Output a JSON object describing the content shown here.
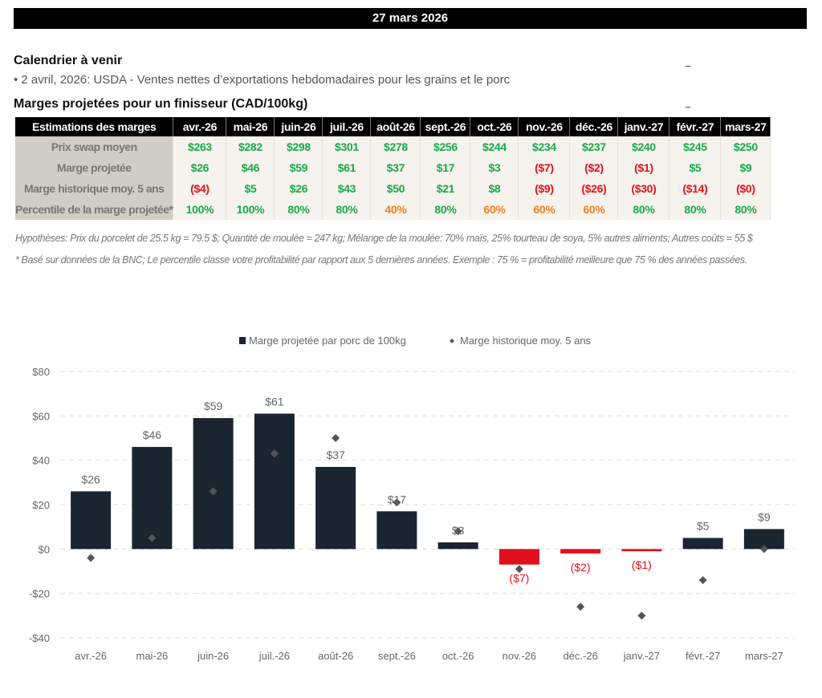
{
  "header": {
    "date": "27 mars 2026"
  },
  "calendar": {
    "title": "Calendrier à venir",
    "items": [
      "• 2 avril, 2026: USDA - Ventes nettes d’exportations hebdomadaires pour les grains et le porc"
    ]
  },
  "margins_section": {
    "title": "Marges projetées pour un finisseur (CAD/100kg)"
  },
  "table": {
    "header_label": "Estimations des marges",
    "months": [
      "avr.-26",
      "mai-26",
      "juin-26",
      "juil.-26",
      "août-26",
      "sept.-26",
      "oct.-26",
      "nov.-26",
      "déc.-26",
      "janv.-27",
      "févr.-27",
      "mars-27"
    ],
    "rows": [
      {
        "label": "Prix swap moyen",
        "values": [
          "$263",
          "$282",
          "$298",
          "$301",
          "$278",
          "$256",
          "$244",
          "$234",
          "$237",
          "$240",
          "$245",
          "$250"
        ],
        "status": [
          "pos",
          "pos",
          "pos",
          "pos",
          "pos",
          "pos",
          "pos",
          "pos",
          "pos",
          "pos",
          "pos",
          "pos"
        ]
      },
      {
        "label": "Marge projetée",
        "values": [
          "$26",
          "$46",
          "$59",
          "$61",
          "$37",
          "$17",
          "$3",
          "($7)",
          "($2)",
          "($1)",
          "$5",
          "$9"
        ],
        "status": [
          "pos",
          "pos",
          "pos",
          "pos",
          "pos",
          "pos",
          "pos",
          "neg",
          "neg",
          "neg",
          "pos",
          "pos"
        ]
      },
      {
        "label": "Marge historique moy. 5 ans",
        "values": [
          "($4)",
          "$5",
          "$26",
          "$43",
          "$50",
          "$21",
          "$8",
          "($9)",
          "($26)",
          "($30)",
          "($14)",
          "($0)"
        ],
        "status": [
          "neg",
          "pos",
          "pos",
          "pos",
          "pos",
          "pos",
          "pos",
          "neg",
          "neg",
          "neg",
          "neg",
          "neg"
        ]
      },
      {
        "label": "Percentile de la marge projetée*",
        "values": [
          "100%",
          "100%",
          "80%",
          "80%",
          "40%",
          "80%",
          "60%",
          "60%",
          "60%",
          "80%",
          "80%",
          "80%"
        ],
        "status": [
          "pos",
          "pos",
          "pos",
          "pos",
          "mid",
          "pos",
          "mid",
          "mid",
          "mid",
          "pos",
          "pos",
          "pos"
        ]
      }
    ]
  },
  "notes": {
    "hypotheses": "Hypothèses: Prix du porcelet de 25.5 kg = 79.5 $; Quantité de moulée = 247 kg; Mélange de la moulée: 70% maïs, 25% tourteau de soya, 5% autres aliments; Autres coûts = 55 $",
    "footnote": "* Basé sur données de la BNC; Le percentile classe votre profitabilité par rapport aux 5 dernières années. Exemple : 75 % = profitabilité meilleure que 75 % des années passées."
  },
  "colors": {
    "positive": "#1aa84a",
    "negative": "#e8101a",
    "neutral": "#f07e1c",
    "bar": "#1a2530",
    "bar_negative": "#e0101c",
    "marker": "#555555"
  },
  "chart_data": {
    "type": "bar",
    "title": "",
    "xlabel": "",
    "ylabel": "",
    "categories": [
      "avr.-26",
      "mai-26",
      "juin-26",
      "juil.-26",
      "août-26",
      "sept.-26",
      "oct.-26",
      "nov.-26",
      "déc.-26",
      "janv.-27",
      "févr.-27",
      "mars-27"
    ],
    "series": [
      {
        "name": "Marge projetée par porc de 100kg",
        "kind": "bar",
        "values": [
          26,
          46,
          59,
          61,
          37,
          17,
          3,
          -7,
          -2,
          -1,
          5,
          9
        ],
        "labels": [
          "$26",
          "$46",
          "$59",
          "$61",
          "$37",
          "$17",
          "$3",
          "($7)",
          "($2)",
          "($1)",
          "$5",
          "$9"
        ]
      },
      {
        "name": "Marge historique moy. 5 ans",
        "kind": "scatter-diamond",
        "values": [
          -4,
          5,
          26,
          43,
          50,
          21,
          8,
          -9,
          -26,
          -30,
          -14,
          0
        ]
      }
    ],
    "ylim": [
      -40,
      80
    ],
    "yticks": [
      -40,
      -20,
      0,
      20,
      40,
      60,
      80
    ],
    "ytick_labels": [
      "-$40",
      "-$20",
      "$0",
      "$20",
      "$40",
      "$60",
      "$80"
    ],
    "grid": true,
    "legend": "top-center"
  }
}
